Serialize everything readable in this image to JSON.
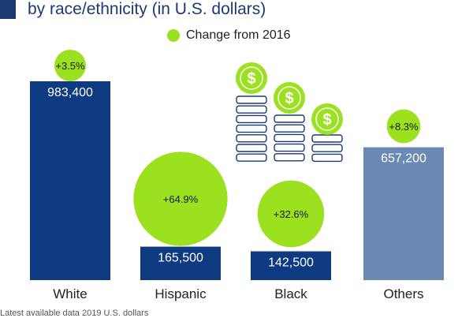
{
  "header": {
    "subtitle": "by race/ethnicity (in U.S. dollars)"
  },
  "legend": {
    "label": "Change from 2016",
    "color": "#9be11f"
  },
  "chart_data": {
    "type": "bar",
    "subtitle": "by race/ethnicity (in U.S. dollars)",
    "categories": [
      "White",
      "Hispanic",
      "Black",
      "Others"
    ],
    "series": [
      {
        "name": "",
        "values": [
          983400,
          165500,
          142500,
          657200
        ],
        "value_labels": [
          "983,400",
          "165,500",
          "142,500",
          "657,200"
        ],
        "colors": [
          "#0d3a80",
          "#0d3a80",
          "#0d3a80",
          "#6a8ab4"
        ]
      },
      {
        "name": "Change from 2016",
        "values": [
          3.5,
          64.9,
          32.6,
          8.3
        ],
        "labels": [
          "+3.5%",
          "+64.9%",
          "+32.6%",
          "+8.3%"
        ],
        "color": "#9be11f"
      }
    ],
    "ylim": [
      0,
      1000000
    ],
    "grid": false,
    "legend_position": "top-center"
  },
  "decorations": {
    "icon": "dollar-coin-stack-icon",
    "coin_symbol": "$",
    "accent_color": "#1b3a73"
  },
  "footnote": "Latest available data 2019 U.S. dollars"
}
